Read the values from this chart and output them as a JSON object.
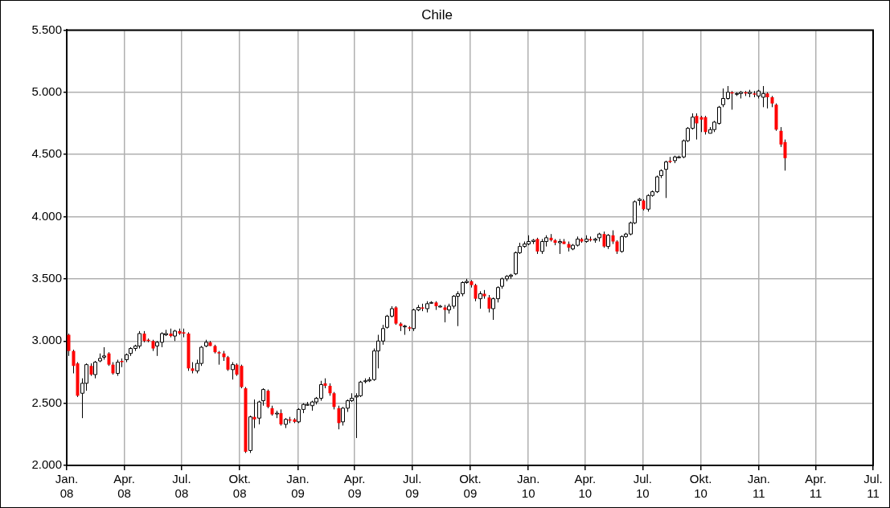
{
  "chart_data": {
    "type": "candlestick",
    "title": "Chile",
    "grid": true,
    "colors": [
      "#ff0000",
      "#ff0000",
      "#ff0000",
      "#ffffff",
      "#ffffff",
      "#ff0000",
      "#ffffff",
      "#ffffff",
      "#ffffff",
      "#ff0000",
      "#ff0000",
      "#ffffff",
      "#ff0000",
      "#ffffff",
      "#ffffff",
      "#ffffff",
      "#ffffff",
      "#ff0000",
      "#ff0000",
      "#ff0000",
      "#ffffff",
      "#ffffff",
      "#ffffff",
      "#ff0000",
      "#ffffff",
      "#ff0000",
      "#ff0000",
      "#ff0000",
      "#ff0000",
      "#ffffff",
      "#ffffff",
      "#ffffff",
      "#ff0000",
      "#ff0000",
      "#ff0000",
      "#ff0000",
      "#ff0000",
      "#ffffff",
      "#ff0000",
      "#ff0000",
      "#ff0000",
      "#ffffff",
      "#ff0000",
      "#ffffff",
      "#ffffff",
      "#ff0000",
      "#ff0000",
      "#ffffff",
      "#ff0000",
      "#ffffff",
      "#ff0000",
      "#ff0000",
      "#ffffff",
      "#ffffff",
      "#ffffff",
      "#ffffff",
      "#ffffff",
      "#ffffff",
      "#ff0000",
      "#ff0000",
      "#ff0000",
      "#ff0000",
      "#ffffff",
      "#ffffff",
      "#ffffff",
      "#ffffff",
      "#ffffff",
      "#ffffff",
      "#ffffff",
      "#ffffff",
      "#ffffff",
      "#ffffff",
      "#ffffff",
      "#ffffff",
      "#ff0000",
      "#ff0000",
      "#ffffff",
      "#ff0000",
      "#ffffff",
      "#ffffff",
      "#ff0000",
      "#ffffff",
      "#ffffff",
      "#ff0000",
      "#ffffff",
      "#ff0000",
      "#ffffff",
      "#ffffff",
      "#ffffff",
      "#ffffff",
      "#ffffff",
      "#ff0000",
      "#ff0000",
      "#ffffff",
      "#ff0000",
      "#ff0000",
      "#ffffff",
      "#ffffff",
      "#ffffff",
      "#ffffff",
      "#ffffff",
      "#ffffff",
      "#ffffff",
      "#ffffff",
      "#ffffff",
      "#ffffff",
      "#ff0000",
      "#ffffff",
      "#ffffff",
      "#ff0000",
      "#ff0000",
      "#ffffff",
      "#ff0000",
      "#ff0000",
      "#ffffff",
      "#ffffff",
      "#ff0000",
      "#ffffff",
      "#ff0000",
      "#ffffff",
      "#ffffff",
      "#ff0000",
      "#ffffff",
      "#ff0000",
      "#ff0000",
      "#ffffff",
      "#ffffff",
      "#ffffff",
      "#ffffff",
      "#ffffff",
      "#ff0000",
      "#ffffff",
      "#ffffff",
      "#ffffff",
      "#ffffff",
      "#ffffff",
      "#ff0000",
      "#ffffff",
      "#ffffff",
      "#ffffff",
      "#ffffff",
      "#ffffff",
      "#ff0000",
      "#ff0000",
      "#ff0000",
      "#ffffff",
      "#ffffff",
      "#ffffff",
      "#ffffff",
      "#ffffff",
      "#ff0000",
      "#ffffff",
      "#ffffff",
      "#ff0000",
      "#ffffff",
      "#ff0000",
      "#ffffff",
      "#ffffff",
      "#ff0000",
      "#ff0000",
      "#ff0000",
      "#ff0000",
      "#ff0000"
    ],
    "xlim": [
      "2008-01-01",
      "2011-07-01"
    ],
    "xticks": [
      {
        "value": "2008-01",
        "label": "Jan. 08"
      },
      {
        "value": "2008-04",
        "label": "Apr. 08"
      },
      {
        "value": "2008-07",
        "label": "Jul. 08"
      },
      {
        "value": "2008-10",
        "label": "Okt. 08"
      },
      {
        "value": "2009-01",
        "label": "Jan. 09"
      },
      {
        "value": "2009-04",
        "label": "Apr. 09"
      },
      {
        "value": "2009-07",
        "label": "Jul. 09"
      },
      {
        "value": "2009-10",
        "label": "Okt. 09"
      },
      {
        "value": "2010-01",
        "label": "Jan. 10"
      },
      {
        "value": "2010-04",
        "label": "Apr. 10"
      },
      {
        "value": "2010-07",
        "label": "Jul. 10"
      },
      {
        "value": "2010-10",
        "label": "Okt. 10"
      },
      {
        "value": "2011-01",
        "label": "Jan. 11"
      },
      {
        "value": "2011-04",
        "label": "Apr. 11"
      },
      {
        "value": "2011-07",
        "label": "Jul. 11"
      }
    ],
    "ylim": [
      2000,
      5500
    ],
    "yticks": [
      {
        "value": 2000,
        "label": "2.000"
      },
      {
        "value": 2500,
        "label": "2.500"
      },
      {
        "value": 3000,
        "label": "3.000"
      },
      {
        "value": 3500,
        "label": "3.500"
      },
      {
        "value": 4000,
        "label": "4.000"
      },
      {
        "value": 4500,
        "label": "4.500"
      },
      {
        "value": 5000,
        "label": "5.000"
      },
      {
        "value": 5500,
        "label": "5.500"
      }
    ],
    "x": [
      "2008-01-04",
      "2008-01-11",
      "2008-01-18",
      "2008-01-25",
      "2008-02-01",
      "2008-02-08",
      "2008-02-15",
      "2008-02-22",
      "2008-02-29",
      "2008-03-07",
      "2008-03-14",
      "2008-03-21",
      "2008-03-28",
      "2008-04-04",
      "2008-04-11",
      "2008-04-18",
      "2008-04-25",
      "2008-05-02",
      "2008-05-09",
      "2008-05-16",
      "2008-05-23",
      "2008-05-30",
      "2008-06-06",
      "2008-06-13",
      "2008-06-20",
      "2008-06-27",
      "2008-07-04",
      "2008-07-11",
      "2008-07-18",
      "2008-07-25",
      "2008-08-01",
      "2008-08-08",
      "2008-08-15",
      "2008-08-22",
      "2008-08-29",
      "2008-09-05",
      "2008-09-12",
      "2008-09-19",
      "2008-09-26",
      "2008-10-03",
      "2008-10-10",
      "2008-10-17",
      "2008-10-24",
      "2008-10-31",
      "2008-11-07",
      "2008-11-14",
      "2008-11-21",
      "2008-11-28",
      "2008-12-05",
      "2008-12-12",
      "2008-12-19",
      "2008-12-26",
      "2009-01-02",
      "2009-01-09",
      "2009-01-16",
      "2009-01-23",
      "2009-01-30",
      "2009-02-06",
      "2009-02-13",
      "2009-02-20",
      "2009-02-27",
      "2009-03-06",
      "2009-03-13",
      "2009-03-20",
      "2009-03-27",
      "2009-04-03",
      "2009-04-10",
      "2009-04-17",
      "2009-04-24",
      "2009-05-01",
      "2009-05-08",
      "2009-05-15",
      "2009-05-22",
      "2009-05-29",
      "2009-06-05",
      "2009-06-12",
      "2009-06-19",
      "2009-06-26",
      "2009-07-03",
      "2009-07-10",
      "2009-07-17",
      "2009-07-24",
      "2009-07-31",
      "2009-08-07",
      "2009-08-14",
      "2009-08-21",
      "2009-08-28",
      "2009-09-04",
      "2009-09-11",
      "2009-09-18",
      "2009-09-25",
      "2009-10-02",
      "2009-10-09",
      "2009-10-16",
      "2009-10-23",
      "2009-10-30",
      "2009-11-06",
      "2009-11-13",
      "2009-11-20",
      "2009-11-27",
      "2009-12-04",
      "2009-12-11",
      "2009-12-18",
      "2009-12-25",
      "2010-01-01",
      "2010-01-08",
      "2010-01-15",
      "2010-01-22",
      "2010-01-29",
      "2010-02-05",
      "2010-02-12",
      "2010-02-19",
      "2010-02-26",
      "2010-03-05",
      "2010-03-12",
      "2010-03-19",
      "2010-03-26",
      "2010-04-02",
      "2010-04-09",
      "2010-04-16",
      "2010-04-23",
      "2010-04-30",
      "2010-05-07",
      "2010-05-14",
      "2010-05-21",
      "2010-05-28",
      "2010-06-04",
      "2010-06-11",
      "2010-06-18",
      "2010-06-25",
      "2010-07-02",
      "2010-07-09",
      "2010-07-16",
      "2010-07-23",
      "2010-07-30",
      "2010-08-06",
      "2010-08-13",
      "2010-08-20",
      "2010-08-27",
      "2010-09-03",
      "2010-09-10",
      "2010-09-17",
      "2010-09-24",
      "2010-10-01",
      "2010-10-08",
      "2010-10-15",
      "2010-10-22",
      "2010-10-29",
      "2010-11-05",
      "2010-11-12",
      "2010-11-19",
      "2010-11-26",
      "2010-12-03",
      "2010-12-10",
      "2010-12-17",
      "2010-12-24",
      "2010-12-31",
      "2011-01-07",
      "2011-01-14",
      "2011-01-21",
      "2011-01-28",
      "2011-02-04",
      "2011-02-11"
    ],
    "ohlc": [
      [
        3050,
        3060,
        2880,
        2920
      ],
      [
        2920,
        2930,
        2740,
        2800
      ],
      [
        2820,
        2830,
        2550,
        2560
      ],
      [
        2580,
        2700,
        2380,
        2660
      ],
      [
        2660,
        2820,
        2600,
        2810
      ],
      [
        2800,
        2820,
        2720,
        2730
      ],
      [
        2730,
        2840,
        2700,
        2830
      ],
      [
        2840,
        2900,
        2830,
        2860
      ],
      [
        2870,
        2950,
        2850,
        2880
      ],
      [
        2900,
        2910,
        2800,
        2810
      ],
      [
        2810,
        2830,
        2730,
        2740
      ],
      [
        2740,
        2850,
        2720,
        2830
      ],
      [
        2840,
        2860,
        2790,
        2830
      ],
      [
        2850,
        2900,
        2830,
        2890
      ],
      [
        2900,
        2950,
        2880,
        2940
      ],
      [
        2940,
        2970,
        2920,
        2960
      ],
      [
        2960,
        3080,
        2940,
        3060
      ],
      [
        3060,
        3080,
        2990,
        3000
      ],
      [
        3010,
        3020,
        2990,
        3000
      ],
      [
        3000,
        3010,
        2920,
        2940
      ],
      [
        2960,
        3000,
        2880,
        2990
      ],
      [
        2990,
        3070,
        2950,
        3060
      ],
      [
        3050,
        3090,
        3040,
        3060
      ],
      [
        3060,
        3100,
        3030,
        3040
      ],
      [
        3040,
        3090,
        3000,
        3080
      ],
      [
        3080,
        3100,
        3050,
        3060
      ],
      [
        3070,
        3100,
        3030,
        3060
      ],
      [
        3060,
        3070,
        2760,
        2780
      ],
      [
        2780,
        2830,
        2740,
        2760
      ],
      [
        2760,
        2850,
        2740,
        2820
      ],
      [
        2820,
        2960,
        2800,
        2950
      ],
      [
        2960,
        3010,
        2950,
        2990
      ],
      [
        2990,
        3000,
        2960,
        2960
      ],
      [
        2960,
        2970,
        2900,
        2910
      ],
      [
        2910,
        2920,
        2810,
        2900
      ],
      [
        2900,
        2920,
        2840,
        2870
      ],
      [
        2870,
        2880,
        2760,
        2770
      ],
      [
        2770,
        2830,
        2690,
        2810
      ],
      [
        2810,
        2820,
        2720,
        2730
      ],
      [
        2800,
        2810,
        2620,
        2630
      ],
      [
        2620,
        2630,
        2100,
        2110
      ],
      [
        2120,
        2400,
        2100,
        2390
      ],
      [
        2390,
        2530,
        2300,
        2370
      ],
      [
        2380,
        2520,
        2330,
        2510
      ],
      [
        2520,
        2620,
        2480,
        2610
      ],
      [
        2600,
        2610,
        2460,
        2470
      ],
      [
        2460,
        2480,
        2400,
        2410
      ],
      [
        2420,
        2440,
        2380,
        2420
      ],
      [
        2420,
        2450,
        2320,
        2330
      ],
      [
        2330,
        2380,
        2300,
        2370
      ],
      [
        2370,
        2390,
        2340,
        2360
      ],
      [
        2370,
        2380,
        2340,
        2350
      ],
      [
        2350,
        2460,
        2340,
        2450
      ],
      [
        2450,
        2500,
        2420,
        2490
      ],
      [
        2490,
        2510,
        2480,
        2490
      ],
      [
        2480,
        2520,
        2440,
        2510
      ],
      [
        2510,
        2550,
        2490,
        2540
      ],
      [
        2540,
        2680,
        2520,
        2650
      ],
      [
        2660,
        2700,
        2620,
        2640
      ],
      [
        2640,
        2660,
        2560,
        2580
      ],
      [
        2580,
        2590,
        2450,
        2470
      ],
      [
        2460,
        2480,
        2290,
        2340
      ],
      [
        2350,
        2470,
        2320,
        2460
      ],
      [
        2460,
        2530,
        2430,
        2520
      ],
      [
        2520,
        2580,
        2510,
        2540
      ],
      [
        2550,
        2580,
        2220,
        2560
      ],
      [
        2560,
        2680,
        2550,
        2670
      ],
      [
        2680,
        2700,
        2660,
        2680
      ],
      [
        2680,
        2710,
        2670,
        2690
      ],
      [
        2690,
        2940,
        2680,
        2920
      ],
      [
        2920,
        3050,
        2780,
        3000
      ],
      [
        3000,
        3130,
        2970,
        3100
      ],
      [
        3110,
        3210,
        3100,
        3200
      ],
      [
        3200,
        3280,
        3190,
        3260
      ],
      [
        3270,
        3280,
        3130,
        3140
      ],
      [
        3140,
        3150,
        3080,
        3120
      ],
      [
        3120,
        3130,
        3050,
        3120
      ],
      [
        3110,
        3120,
        3080,
        3100
      ],
      [
        3100,
        3260,
        3080,
        3250
      ],
      [
        3250,
        3290,
        3240,
        3270
      ],
      [
        3270,
        3300,
        3240,
        3260
      ],
      [
        3260,
        3320,
        3230,
        3300
      ],
      [
        3310,
        3320,
        3300,
        3310
      ],
      [
        3310,
        3320,
        3250,
        3280
      ],
      [
        3280,
        3290,
        3270,
        3280
      ],
      [
        3270,
        3290,
        3150,
        3250
      ],
      [
        3250,
        3300,
        3220,
        3280
      ],
      [
        3280,
        3370,
        3260,
        3360
      ],
      [
        3360,
        3400,
        3120,
        3380
      ],
      [
        3380,
        3480,
        3360,
        3470
      ],
      [
        3470,
        3500,
        3460,
        3480
      ],
      [
        3480,
        3490,
        3430,
        3450
      ],
      [
        3450,
        3460,
        3320,
        3340
      ],
      [
        3340,
        3400,
        3260,
        3380
      ],
      [
        3380,
        3410,
        3340,
        3360
      ],
      [
        3350,
        3370,
        3230,
        3260
      ],
      [
        3260,
        3350,
        3170,
        3340
      ],
      [
        3340,
        3440,
        3310,
        3430
      ],
      [
        3440,
        3510,
        3420,
        3500
      ],
      [
        3500,
        3530,
        3480,
        3520
      ],
      [
        3520,
        3540,
        3500,
        3530
      ],
      [
        3540,
        3720,
        3530,
        3710
      ],
      [
        3710,
        3790,
        3700,
        3760
      ],
      [
        3760,
        3800,
        3750,
        3780
      ],
      [
        3780,
        3850,
        3770,
        3800
      ],
      [
        3800,
        3820,
        3780,
        3810
      ],
      [
        3820,
        3830,
        3700,
        3720
      ],
      [
        3720,
        3820,
        3700,
        3800
      ],
      [
        3800,
        3850,
        3760,
        3830
      ],
      [
        3830,
        3860,
        3800,
        3810
      ],
      [
        3810,
        3820,
        3770,
        3790
      ],
      [
        3790,
        3820,
        3700,
        3800
      ],
      [
        3800,
        3820,
        3780,
        3780
      ],
      [
        3780,
        3800,
        3720,
        3750
      ],
      [
        3740,
        3780,
        3730,
        3770
      ],
      [
        3770,
        3840,
        3760,
        3820
      ],
      [
        3820,
        3830,
        3790,
        3800
      ],
      [
        3800,
        3850,
        3790,
        3820
      ],
      [
        3820,
        3840,
        3800,
        3810
      ],
      [
        3810,
        3830,
        3790,
        3820
      ],
      [
        3830,
        3870,
        3800,
        3860
      ],
      [
        3860,
        3880,
        3750,
        3760
      ],
      [
        3760,
        3860,
        3740,
        3850
      ],
      [
        3850,
        3890,
        3780,
        3800
      ],
      [
        3800,
        3810,
        3700,
        3720
      ],
      [
        3720,
        3850,
        3710,
        3840
      ],
      [
        3840,
        3870,
        3830,
        3860
      ],
      [
        3860,
        3960,
        3850,
        3950
      ],
      [
        3950,
        4130,
        3940,
        4120
      ],
      [
        4130,
        4150,
        4090,
        4140
      ],
      [
        4130,
        4140,
        4050,
        4060
      ],
      [
        4060,
        4180,
        4040,
        4170
      ],
      [
        4170,
        4210,
        4160,
        4200
      ],
      [
        4200,
        4330,
        4190,
        4320
      ],
      [
        4330,
        4380,
        4310,
        4370
      ],
      [
        4380,
        4450,
        4150,
        4440
      ],
      [
        4450,
        4480,
        4430,
        4440
      ],
      [
        4450,
        4490,
        4430,
        4480
      ],
      [
        4480,
        4490,
        4470,
        4480
      ],
      [
        4480,
        4620,
        4470,
        4610
      ],
      [
        4610,
        4720,
        4600,
        4710
      ],
      [
        4710,
        4830,
        4700,
        4800
      ],
      [
        4810,
        4830,
        4620,
        4750
      ],
      [
        4800,
        4810,
        4680,
        4780
      ],
      [
        4800,
        4810,
        4660,
        4680
      ],
      [
        4670,
        4720,
        4670,
        4700
      ],
      [
        4700,
        4770,
        4680,
        4760
      ],
      [
        4750,
        4890,
        4740,
        4880
      ],
      [
        4900,
        5030,
        4880,
        4950
      ],
      [
        4950,
        5050,
        4940,
        5000
      ],
      [
        5000,
        5010,
        4860,
        4990
      ],
      [
        4990,
        5000,
        4970,
        4990
      ],
      [
        4990,
        5010,
        4950,
        5000
      ],
      [
        5000,
        5010,
        4970,
        4990
      ],
      [
        4990,
        5020,
        4960,
        5000
      ],
      [
        4990,
        5010,
        4960,
        4980
      ],
      [
        4970,
        5020,
        4950,
        5010
      ],
      [
        4960,
        5050,
        4880,
        4990
      ],
      [
        4990,
        5000,
        4870,
        4960
      ],
      [
        4960,
        4970,
        4880,
        4910
      ],
      [
        4900,
        4910,
        4690,
        4700
      ],
      [
        4690,
        4720,
        4560,
        4580
      ],
      [
        4600,
        4620,
        4370,
        4470
      ]
    ]
  }
}
